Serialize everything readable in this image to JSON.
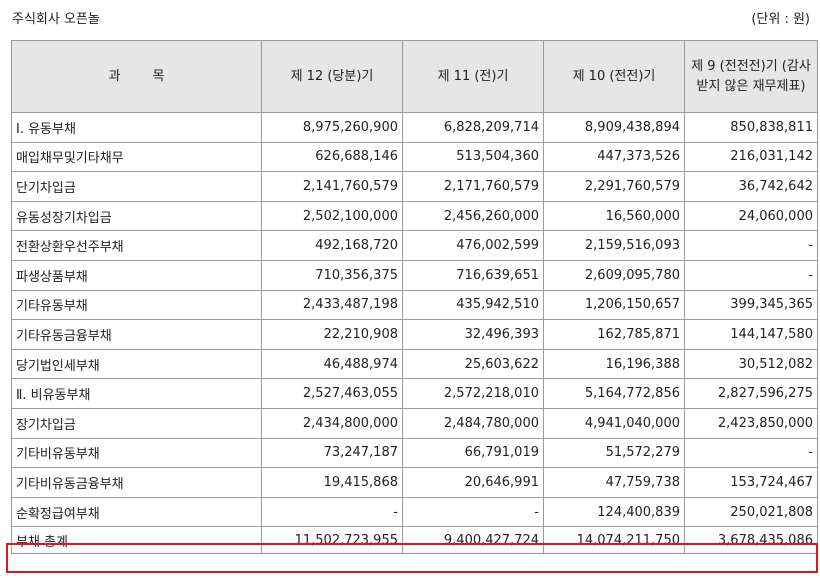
{
  "header": {
    "company": "주식회사 오픈놀",
    "unit": "(단위 : 원)"
  },
  "table": {
    "columns": {
      "item_a": "과",
      "item_b": "목",
      "p12": "제 12 (당분)기",
      "p11": "제 11 (전)기",
      "p10": "제 10 (전전)기",
      "p9": "제 9 (전전전)기 (감사받지 않은 재무제표)"
    },
    "rows": [
      {
        "label": "Ⅰ. 유동부채",
        "v12": "8,975,260,900",
        "v11": "6,828,209,714",
        "v10": "8,909,438,894",
        "v9": "850,838,811"
      },
      {
        "label": "매입채무및기타채무",
        "v12": "626,688,146",
        "v11": "513,504,360",
        "v10": "447,373,526",
        "v9": "216,031,142"
      },
      {
        "label": "단기차입금",
        "v12": "2,141,760,579",
        "v11": "2,171,760,579",
        "v10": "2,291,760,579",
        "v9": "36,742,642"
      },
      {
        "label": "유동성장기차입금",
        "v12": "2,502,100,000",
        "v11": "2,456,260,000",
        "v10": "16,560,000",
        "v9": "24,060,000"
      },
      {
        "label": "전환상환우선주부채",
        "v12": "492,168,720",
        "v11": "476,002,599",
        "v10": "2,159,516,093",
        "v9": "-"
      },
      {
        "label": "파생상품부채",
        "v12": "710,356,375",
        "v11": "716,639,651",
        "v10": "2,609,095,780",
        "v9": "-"
      },
      {
        "label": "기타유동부채",
        "v12": "2,433,487,198",
        "v11": "435,942,510",
        "v10": "1,206,150,657",
        "v9": "399,345,365"
      },
      {
        "label": "기타유동금융부채",
        "v12": "22,210,908",
        "v11": "32,496,393",
        "v10": "162,785,871",
        "v9": "144,147,580"
      },
      {
        "label": "당기법인세부채",
        "v12": "46,488,974",
        "v11": "25,603,622",
        "v10": "16,196,388",
        "v9": "30,512,082"
      },
      {
        "label": "Ⅱ. 비유동부채",
        "v12": "2,527,463,055",
        "v11": "2,572,218,010",
        "v10": "5,164,772,856",
        "v9": "2,827,596,275"
      },
      {
        "label": "장기차입금",
        "v12": "2,434,800,000",
        "v11": "2,484,780,000",
        "v10": "4,941,040,000",
        "v9": "2,423,850,000"
      },
      {
        "label": "기타비유동부채",
        "v12": "73,247,187",
        "v11": "66,791,019",
        "v10": "51,572,279",
        "v9": "-"
      },
      {
        "label": "기타비유동금융부채",
        "v12": "19,415,868",
        "v11": "20,646,991",
        "v10": "47,759,738",
        "v9": "153,724,467"
      },
      {
        "label": "순확정급여부채",
        "v12": "-",
        "v11": "-",
        "v10": "124,400,839",
        "v9": "250,021,808"
      }
    ],
    "total": {
      "label": "부채 총계",
      "v12": "11,502,723,955",
      "v11": "9,400,427,724",
      "v10": "14,074,211,750",
      "v9": "3,678,435,086"
    },
    "highlight_color": "#e0141e",
    "header_bg": "#e6e6e6"
  }
}
